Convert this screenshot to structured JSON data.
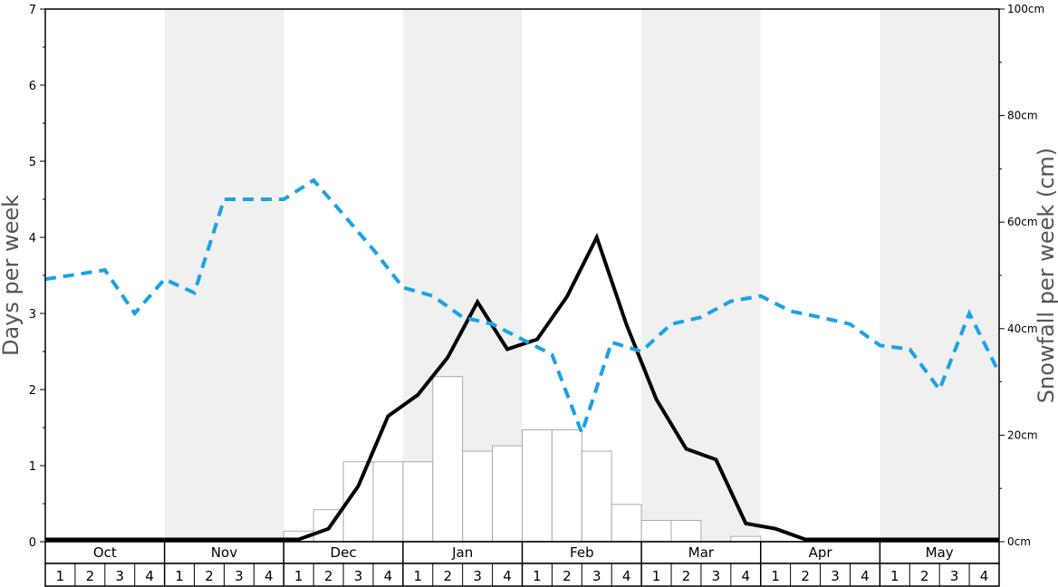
{
  "chart_data": {
    "type": "bar",
    "y_left_label": "Days per week",
    "y_right_label": "Snowfall per week (cm)",
    "y_left_ticks": [
      "0",
      "1",
      "2",
      "3",
      "4",
      "5",
      "6",
      "7"
    ],
    "y_left_range": [
      0,
      7
    ],
    "y_right_ticks": [
      "0cm",
      "20cm",
      "40cm",
      "60cm",
      "80cm",
      "100cm"
    ],
    "y_right_range": [
      0,
      100
    ],
    "months": [
      "Oct",
      "Nov",
      "Dec",
      "Jan",
      "Feb",
      "Mar",
      "Apr",
      "May"
    ],
    "weeks": [
      "1",
      "2",
      "3",
      "4"
    ],
    "shaded_months": [
      "Nov",
      "Jan",
      "Mar",
      "May"
    ],
    "snowfall_bars_cm": [
      0,
      0,
      0,
      0,
      0,
      0,
      0,
      0,
      2,
      6,
      15,
      15,
      15,
      31,
      17,
      18,
      21,
      21,
      17,
      7,
      4,
      4,
      0,
      1,
      0,
      0,
      0,
      0,
      0,
      0,
      0,
      0
    ],
    "snow_days_line": [
      0.03,
      0.03,
      0.03,
      0.03,
      0.03,
      0.03,
      0.03,
      0.03,
      0.03,
      0.17,
      0.73,
      1.65,
      1.93,
      2.42,
      3.15,
      2.53,
      2.66,
      3.22,
      4.0,
      2.85,
      1.87,
      1.22,
      1.08,
      0.24,
      0.17,
      0.03,
      0.03,
      0.03,
      0.03,
      0.03,
      0.03,
      0.03
    ],
    "dashed_line_series": [
      3.45,
      3.51,
      3.57,
      3.0,
      3.45,
      3.27,
      4.5,
      4.5,
      4.5,
      4.75,
      4.3,
      3.84,
      3.34,
      3.23,
      2.95,
      2.86,
      2.66,
      2.46,
      1.43,
      2.62,
      2.5,
      2.86,
      2.95,
      3.16,
      3.23,
      3.03,
      2.95,
      2.86,
      2.58,
      2.53,
      2.0,
      3.0,
      2.22
    ],
    "colors": {
      "snowfall_bar_fill": "#ffffff",
      "snowfall_bar_stroke": "#aaaaaa",
      "snow_days_line": "#000000",
      "dashed_line": "#1aa2e6",
      "shaded_band": "#f0f0f0",
      "axis": "#000000"
    },
    "grid": false
  }
}
